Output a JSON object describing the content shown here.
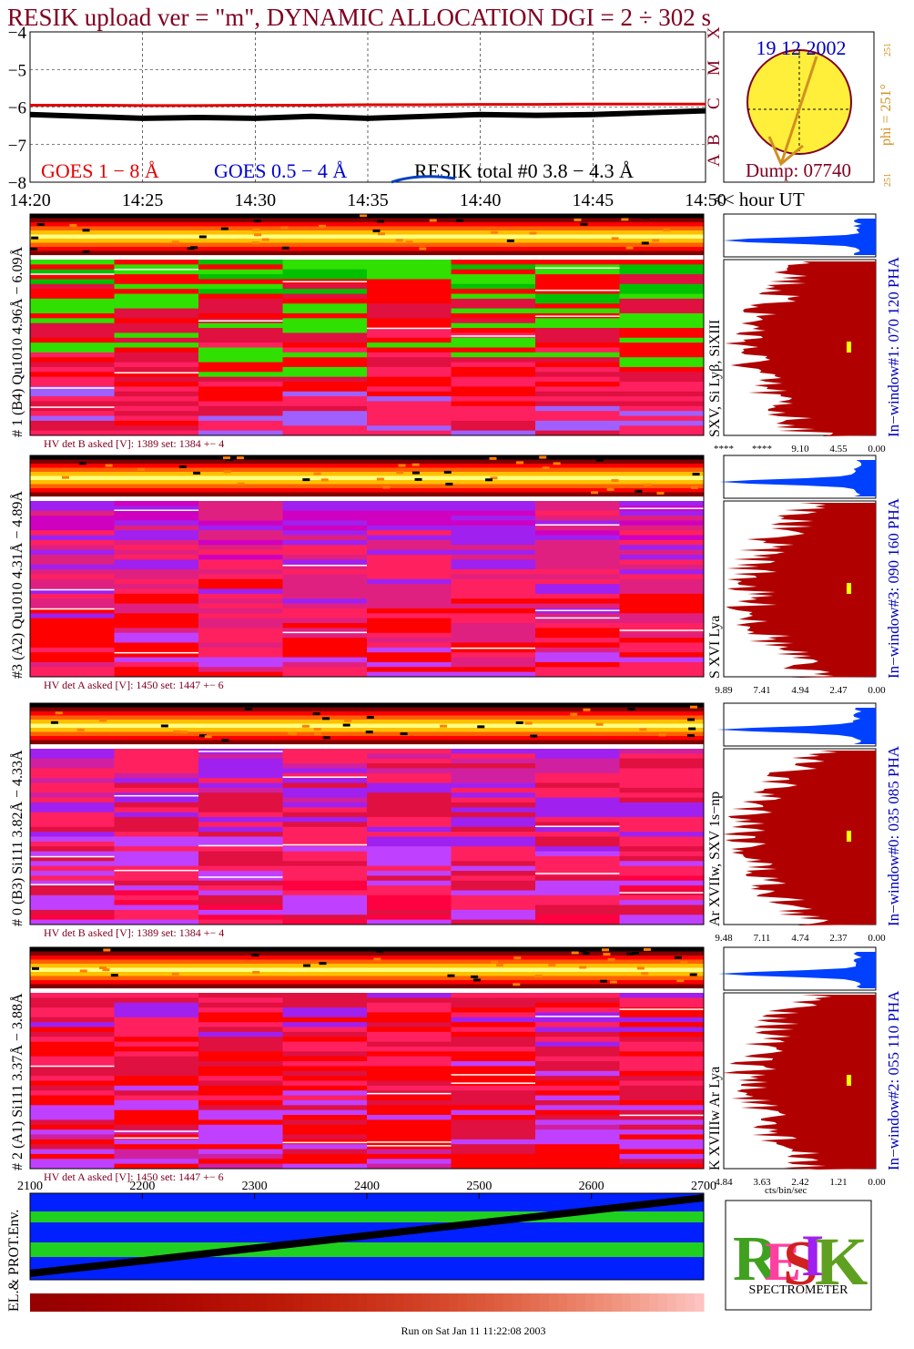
{
  "title": "RESIK upload ver = \"m\", DYNAMIC ALLOCATION  DGI =   2 ÷ 302 s",
  "goes": {
    "ylim": [
      -8,
      -4
    ],
    "yticks": [
      {
        "value": -4,
        "label": "−4"
      },
      {
        "value": -5,
        "label": "−5"
      },
      {
        "value": -6,
        "label": "−6"
      },
      {
        "value": -7,
        "label": "−7"
      },
      {
        "value": -8,
        "label": "−8"
      }
    ],
    "xticks": [
      "14:20",
      "14:25",
      "14:30",
      "14:35",
      "14:40",
      "14:45",
      "14:50"
    ],
    "x_unit": "<< hour UT",
    "series": [
      {
        "name": "GOES 1 − 8 Å",
        "color": "#e00000",
        "values": [
          -5.95,
          -5.95,
          -5.96,
          -5.96,
          -5.95,
          -5.95,
          -5.94,
          -5.94,
          -5.93,
          -5.93,
          -5.92,
          -5.92,
          -5.92
        ]
      },
      {
        "name": "GOES 0.5 − 4 Å",
        "color": "#0000d0"
      },
      {
        "name": "RESIK total #0  3.8 − 4.3 Å",
        "color": "#000000",
        "values": [
          -6.2,
          -6.25,
          -6.3,
          -6.28,
          -6.3,
          -6.25,
          -6.3,
          -6.25,
          -6.2,
          -6.22,
          -6.2,
          -6.15,
          -6.1
        ]
      }
    ]
  },
  "sun": {
    "date": "19 12 2002",
    "dump": "Dump: 07740",
    "phi": "phi = 251°",
    "phi_sub": "251",
    "phi_low": "251",
    "classes": [
      "A",
      "B",
      "C",
      "M",
      "X"
    ]
  },
  "panels": [
    {
      "label": "# 1 (B4) Qu1010 4.96Å − 6.09Å",
      "line": "SXV, Si Lyβ, SiXIII",
      "window": "In−window#1:  070 120 PHA",
      "hv": "HV det B asked [V]:  1389 set:  1384 +−   4",
      "ticks": [
        "****",
        "****",
        "9.10",
        "4.55",
        "0.00"
      ]
    },
    {
      "label": "#3 (A2) Qu1010  4.31Å − 4.89Å",
      "line": "S XVI Lya",
      "window": "In−window#3:  090 160 PHA",
      "hv": "HV det A asked [V]:  1450 set:  1447 +−   6",
      "ticks": [
        "9.89",
        "7.41",
        "4.94",
        "2.47",
        "0.00"
      ]
    },
    {
      "label": "# 0 (B3) Si111  3.82Å − 4.33Å",
      "line": "Ar XVIIw,  SXV 1s−np",
      "window": "In−window#0:  035 085 PHA",
      "hv": "HV det B asked [V]:  1389 set:  1384 +−   4",
      "ticks": [
        "9.48",
        "7.11",
        "4.74",
        "2.37",
        "0.00"
      ]
    },
    {
      "label": "# 2 (A1) Si111  3.37Å − 3.88Å",
      "line": "K XVIIIw  Ar Lya",
      "window": "In−window#2:  055 110 PHA",
      "hv": "HV det A asked [V]:  1450 set:  1447 +−   6",
      "ticks": [
        "4.84",
        "3.63",
        "2.42",
        "1.21",
        "0.00"
      ]
    }
  ],
  "env": {
    "label": "EL.& PROT.Env.",
    "xlim": [
      2100,
      2700
    ],
    "xticks": [
      2100,
      2200,
      2300,
      2400,
      2500,
      2600,
      2700
    ],
    "unit": "cts/bin/sec"
  },
  "logo": {
    "text": "SPECTROMETER"
  },
  "footer": "Run on Sat Jan 11 11:22:08 2003"
}
